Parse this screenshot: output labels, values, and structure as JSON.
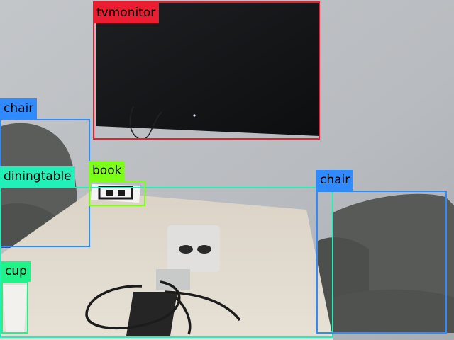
{
  "detections": [
    {
      "label": "tvmonitor",
      "color": "#ec1c31"
    },
    {
      "label": "chair",
      "color": "#2f8bff"
    },
    {
      "label": "diningtable",
      "color": "#22f0b9"
    },
    {
      "label": "book",
      "color": "#7bff15"
    },
    {
      "label": "chair",
      "color": "#2f8bff"
    },
    {
      "label": "cup",
      "color": "#1ff389"
    }
  ]
}
